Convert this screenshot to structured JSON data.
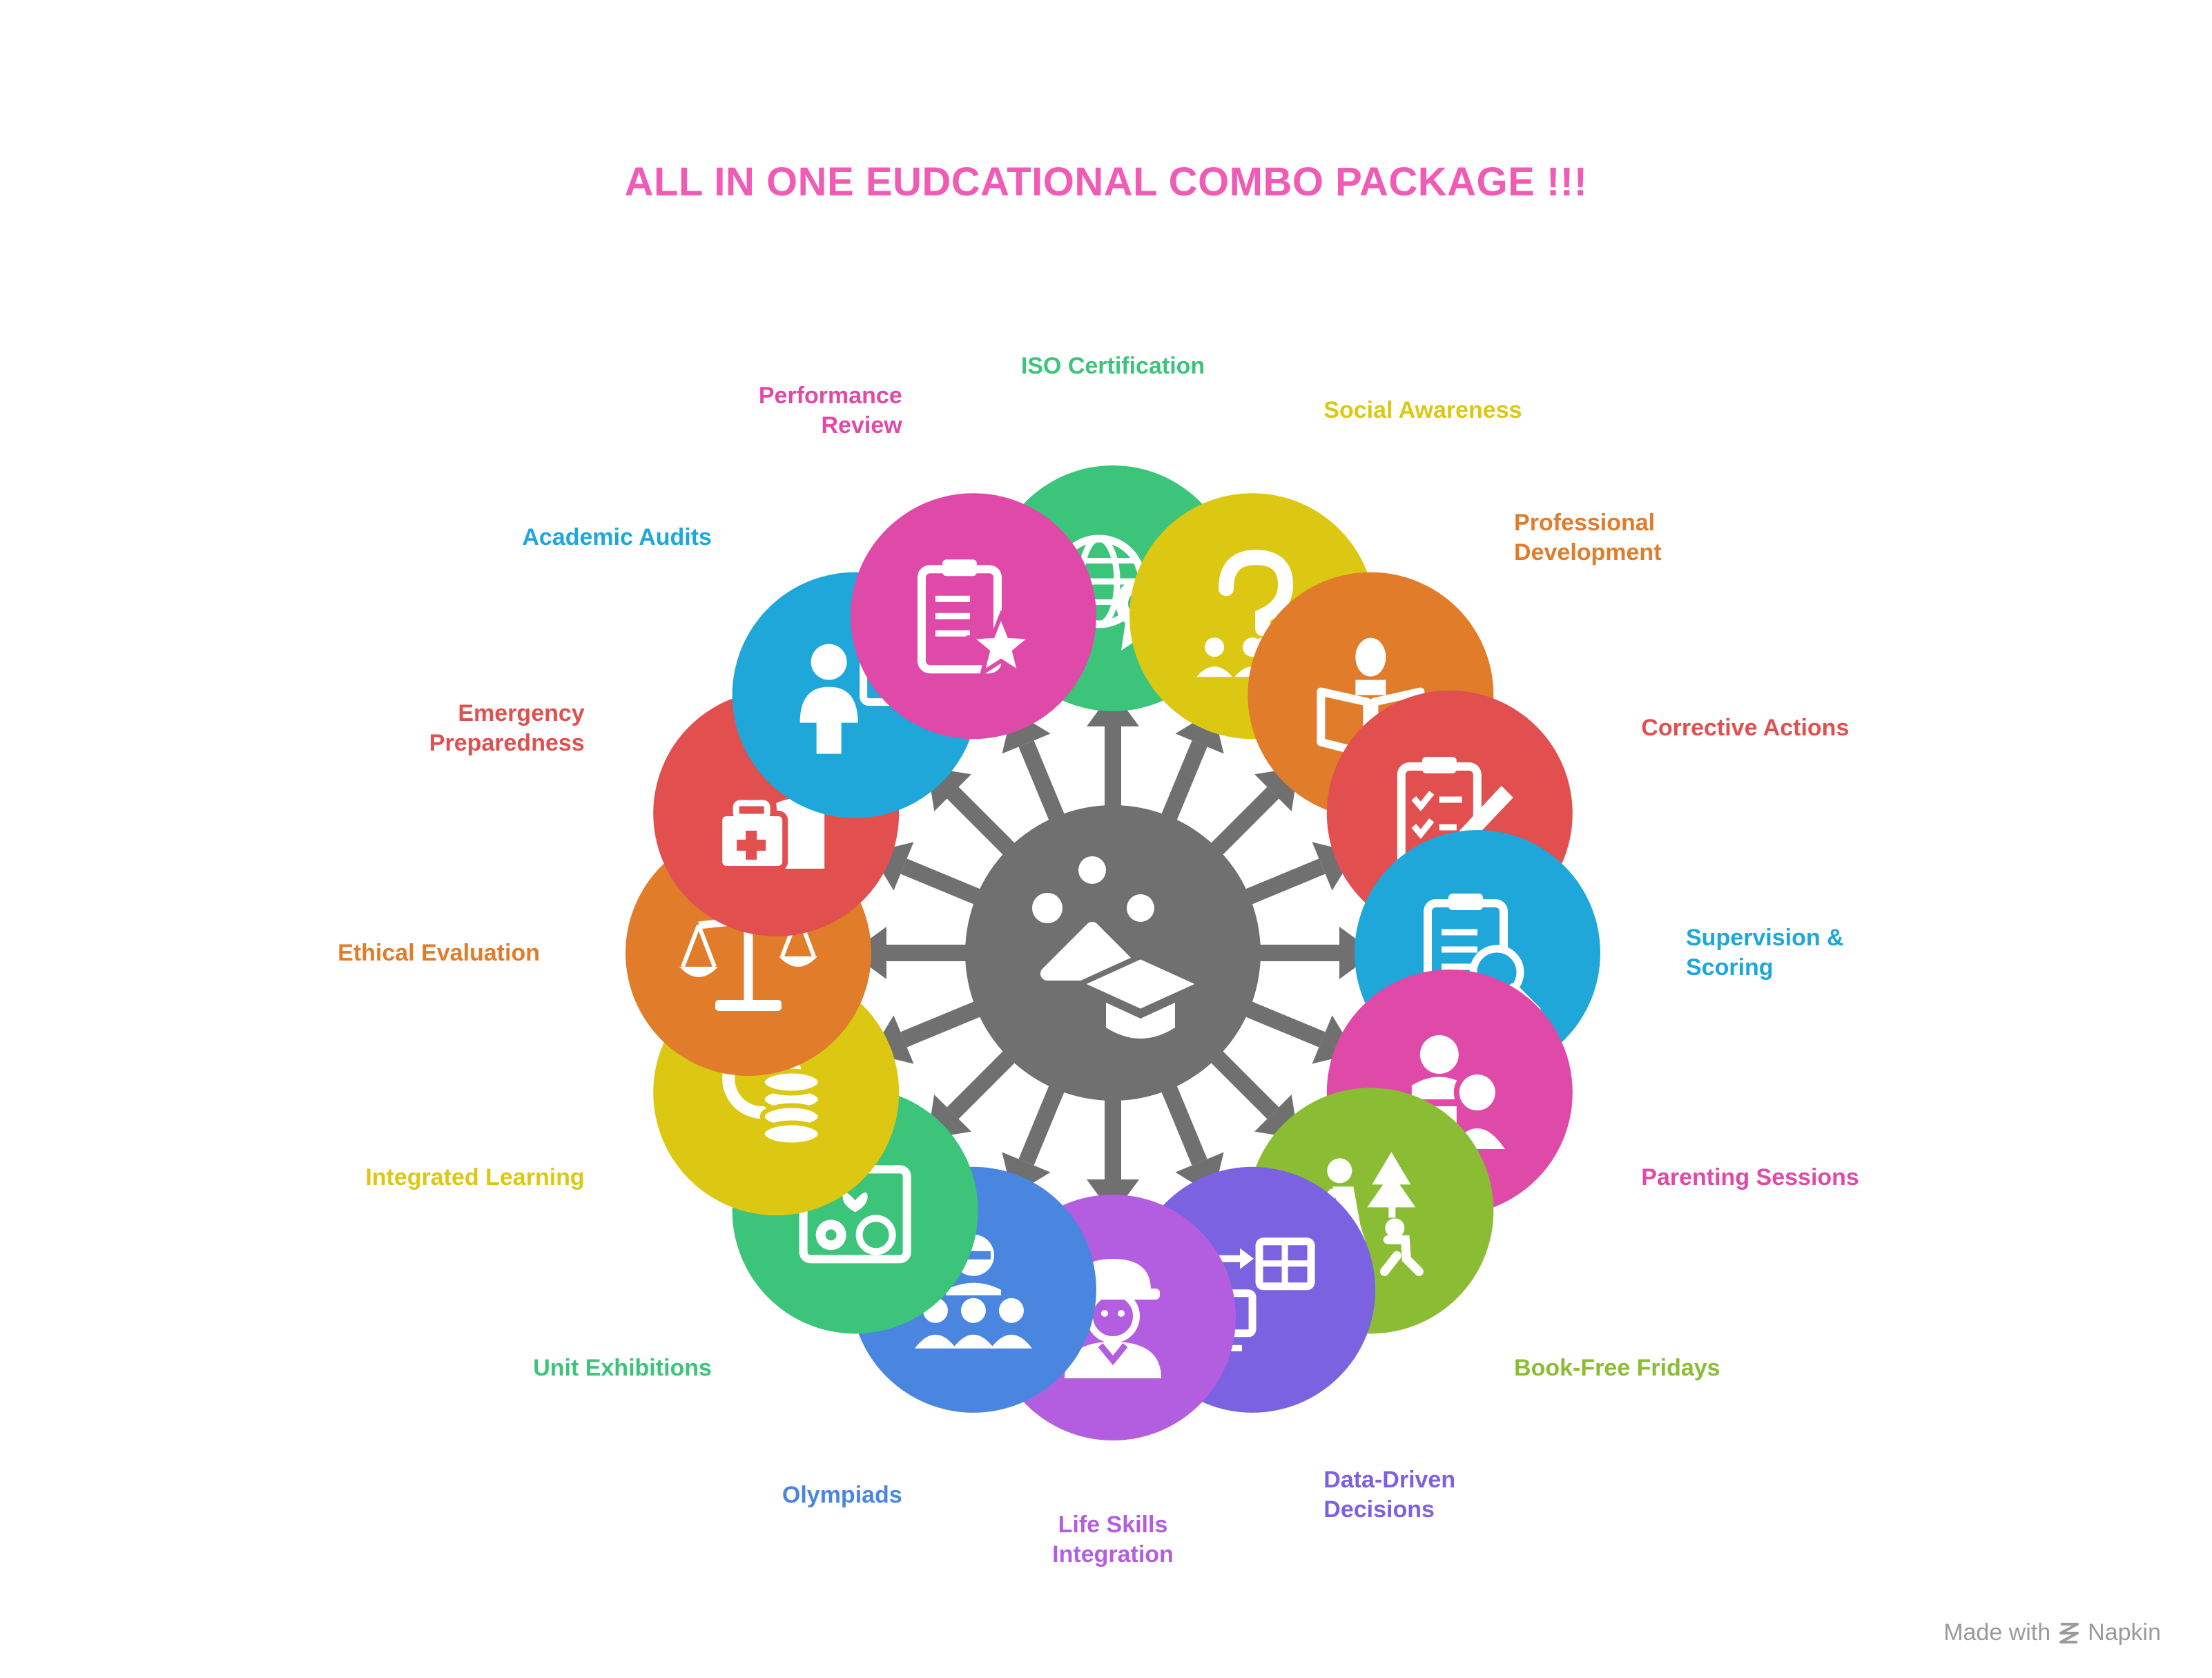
{
  "title": "ALL IN ONE EUDCATIONAL COMBO PACKAGE !!!",
  "hub": {
    "icon": "graduation-dots-icon",
    "color": "#707070"
  },
  "items": [
    {
      "id": "iso-certification",
      "lines": [
        "ISO Certification"
      ],
      "color": "#3cc47a",
      "icon": "globe-award-icon"
    },
    {
      "id": "social-awareness",
      "lines": [
        "Social Awareness"
      ],
      "color": "#dcc813",
      "icon": "question-group-icon"
    },
    {
      "id": "professional-development",
      "lines": [
        "Professional",
        "Development"
      ],
      "color": "#e07c2a",
      "icon": "reader-book-icon"
    },
    {
      "id": "corrective-actions",
      "lines": [
        "Corrective Actions"
      ],
      "color": "#e24f4f",
      "icon": "checklist-pencil-icon"
    },
    {
      "id": "supervision-scoring",
      "lines": [
        "Supervision &",
        "Scoring"
      ],
      "color": "#1ea7d8",
      "icon": "clipboard-search-icon"
    },
    {
      "id": "parenting-sessions",
      "lines": [
        "Parenting Sessions"
      ],
      "color": "#df4aa8",
      "icon": "parent-child-icon"
    },
    {
      "id": "book-free-fridays",
      "lines": [
        "Book-Free Fridays"
      ],
      "color": "#8bbd34",
      "icon": "outdoor-walk-icon"
    },
    {
      "id": "data-driven-decisions",
      "lines": [
        "Data-Driven",
        "Decisions"
      ],
      "color": "#7b62e0",
      "icon": "data-transfer-icon"
    },
    {
      "id": "life-skills-integration",
      "lines": [
        "Life Skills",
        "Integration"
      ],
      "color": "#b35ee0",
      "icon": "worker-helmet-icon"
    },
    {
      "id": "olympiads",
      "lines": [
        "Olympiads"
      ],
      "color": "#4a86e0",
      "icon": "team-group-icon"
    },
    {
      "id": "unit-exhibitions",
      "lines": [
        "Unit Exhibitions"
      ],
      "color": "#3cc47a",
      "icon": "exhibition-frame-icon"
    },
    {
      "id": "integrated-learning",
      "lines": [
        "Integrated Learning"
      ],
      "color": "#dcc813",
      "icon": "coin-stack-icon"
    },
    {
      "id": "ethical-evaluation",
      "lines": [
        "Ethical Evaluation"
      ],
      "color": "#e07c2a",
      "icon": "balance-scale-icon"
    },
    {
      "id": "emergency-preparedness",
      "lines": [
        "Emergency",
        "Preparedness"
      ],
      "color": "#e24f4f",
      "icon": "first-aid-icon"
    },
    {
      "id": "academic-audits",
      "lines": [
        "Academic Audits"
      ],
      "color": "#1ea7d8",
      "icon": "auditor-check-icon"
    },
    {
      "id": "performance-review",
      "lines": [
        "Performance",
        "Review"
      ],
      "color": "#df4aa8",
      "icon": "clipboard-star-icon"
    }
  ],
  "footer": {
    "text": "Made with",
    "brand": "Napkin",
    "icon": "napkin-logo-icon"
  }
}
